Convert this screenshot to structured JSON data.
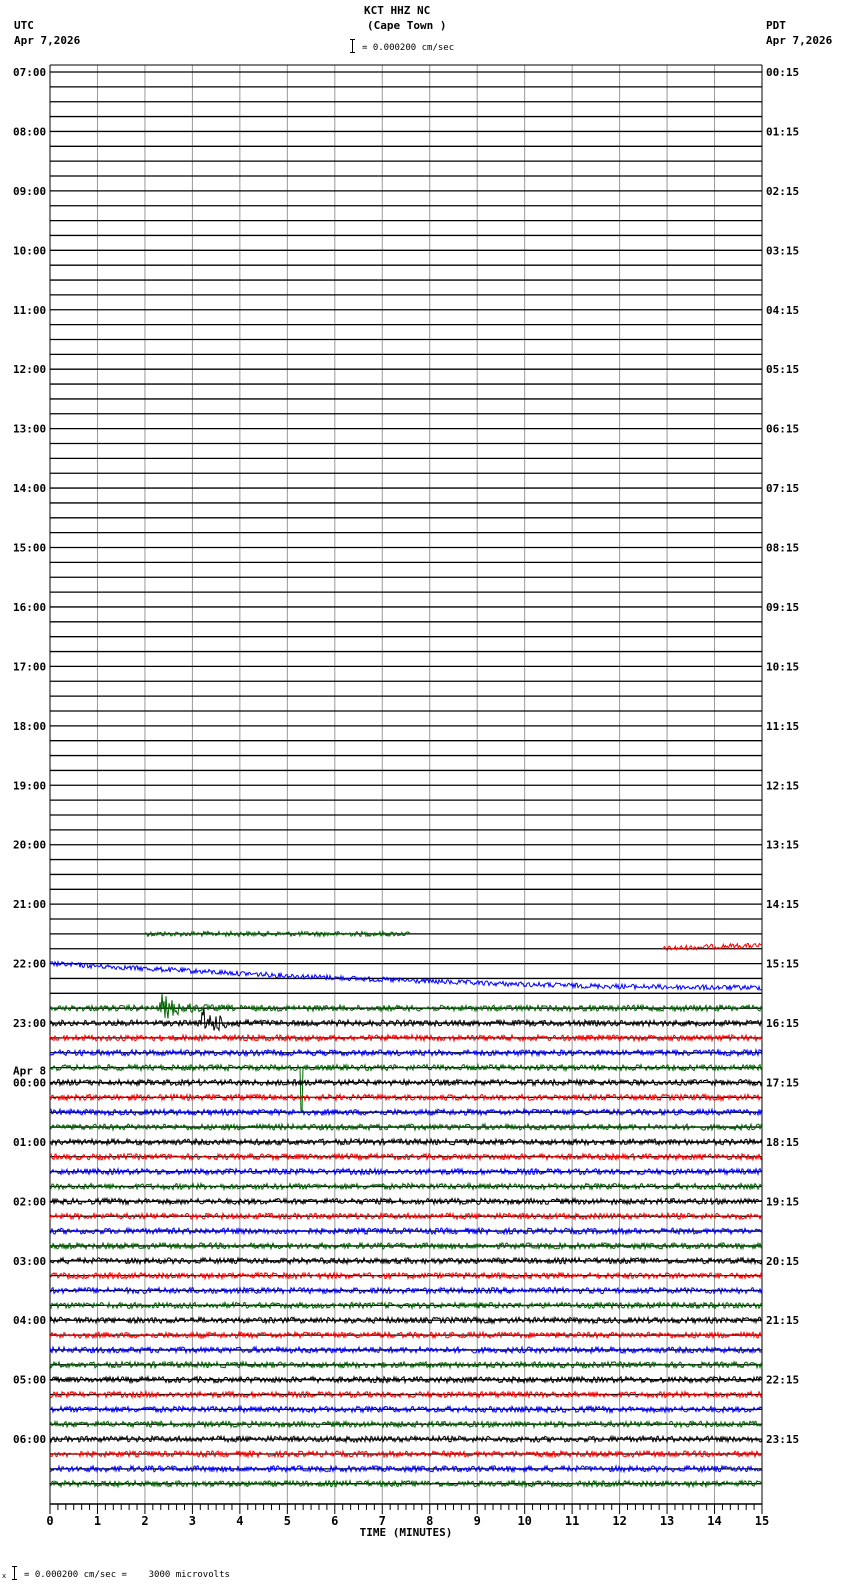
{
  "header": {
    "title": "KCT HHZ NC",
    "subtitle": "(Cape Town )",
    "scale_text": "= 0.000200 cm/sec",
    "left_tz": "UTC",
    "left_date": "Apr 7,2026",
    "right_tz": "PDT",
    "right_date": "Apr 7,2026",
    "day_change_label": "Apr 8"
  },
  "footer": {
    "scale_text": "= 0.000200 cm/sec =    3000 microvolts",
    "scale_prefix": "x"
  },
  "chart_data": {
    "type": "line",
    "title": "KCT HHZ NC (Cape Town )",
    "xlabel": "TIME (MINUTES)",
    "xlim": [
      0,
      15
    ],
    "x_ticks": [
      "0",
      "1",
      "2",
      "3",
      "4",
      "5",
      "6",
      "7",
      "8",
      "9",
      "10",
      "11",
      "12",
      "13",
      "14",
      "15"
    ],
    "rows_per_hour": 4,
    "left_labels": [
      "07:00",
      "08:00",
      "09:00",
      "10:00",
      "11:00",
      "12:00",
      "13:00",
      "14:00",
      "15:00",
      "16:00",
      "17:00",
      "18:00",
      "19:00",
      "20:00",
      "21:00",
      "22:00",
      "23:00",
      "00:00",
      "01:00",
      "02:00",
      "03:00",
      "04:00",
      "05:00",
      "06:00"
    ],
    "right_labels": [
      "00:15",
      "01:15",
      "02:15",
      "03:15",
      "04:15",
      "05:15",
      "06:15",
      "07:15",
      "08:15",
      "09:15",
      "10:15",
      "11:15",
      "12:15",
      "13:15",
      "14:15",
      "15:15",
      "16:15",
      "17:15",
      "18:15",
      "19:15",
      "20:15",
      "21:15",
      "22:15",
      "23:15"
    ],
    "colors": {
      "black": "#000000",
      "red": "#ff0000",
      "blue": "#0000ff",
      "green": "#006400"
    },
    "traces": [
      {
        "row": 58,
        "color": "green",
        "start_min": 2.0,
        "end_min": 7.6,
        "amp": 2.5,
        "drift": 0
      },
      {
        "row": 59,
        "color": "red",
        "start_min": 12.9,
        "end_min": 15,
        "amp": 2.5,
        "drift": -5
      },
      {
        "row": 60,
        "color": "blue",
        "start_min": 0,
        "end_min": 15,
        "amp": 2.5,
        "drift": 40
      },
      {
        "row": 63,
        "color": "green",
        "start_min": 0,
        "end_min": 15,
        "amp": 3,
        "drift": 0,
        "event_min": 2.3
      },
      {
        "row": 64,
        "color": "black",
        "start_min": 0,
        "end_min": 15,
        "amp": 3,
        "drift": 0,
        "event_min": 3.2
      },
      {
        "row": 65,
        "color": "red",
        "start_min": 0,
        "end_min": 15,
        "amp": 3,
        "drift": 0
      },
      {
        "row": 66,
        "color": "blue",
        "start_min": 0,
        "end_min": 15,
        "amp": 3,
        "drift": 0
      },
      {
        "row": 67,
        "color": "green",
        "start_min": 0,
        "end_min": 15,
        "amp": 3,
        "drift": 0,
        "spike_min": 5.3
      }
    ],
    "continuous_from_row": 68,
    "continuous_color_cycle": [
      "black",
      "red",
      "blue",
      "green"
    ]
  }
}
